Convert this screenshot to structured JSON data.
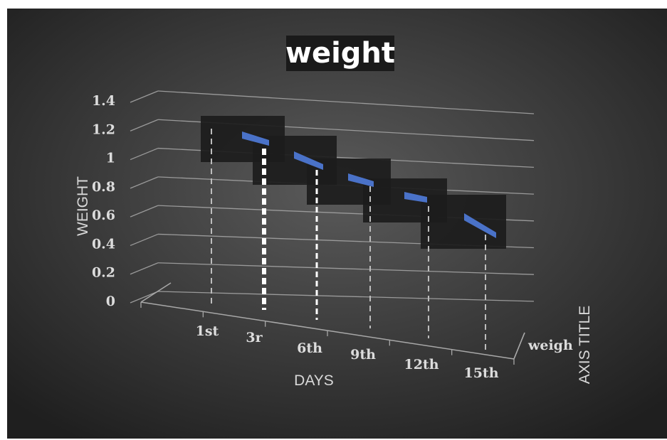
{
  "chart_data": {
    "type": "line",
    "title": "weight",
    "xlabel": "DAYS",
    "ylabel": "WEIGHT",
    "zlabel": "AXIS TITLE",
    "categories": [
      "1st",
      "3r",
      "6th",
      "9th",
      "12th",
      "15th"
    ],
    "series": [
      {
        "name": "weigh",
        "values": [
          1.2,
          1.1,
          1.0,
          0.9,
          0.8,
          0.7
        ]
      }
    ],
    "yticks": [
      "0",
      "0.2",
      "0.4",
      "0.6",
      "0.8",
      "1",
      "1.2",
      "1.4"
    ],
    "ylim": [
      0,
      1.4
    ],
    "grid": true,
    "style": "3d-line-with-drop-lines",
    "colors": {
      "background_inner": "#5a5a5a",
      "background_outer": "#1f1f1f",
      "series": "#4a72c8",
      "grid": "#a8a8a8",
      "label_box": "#1c1c1c"
    }
  }
}
